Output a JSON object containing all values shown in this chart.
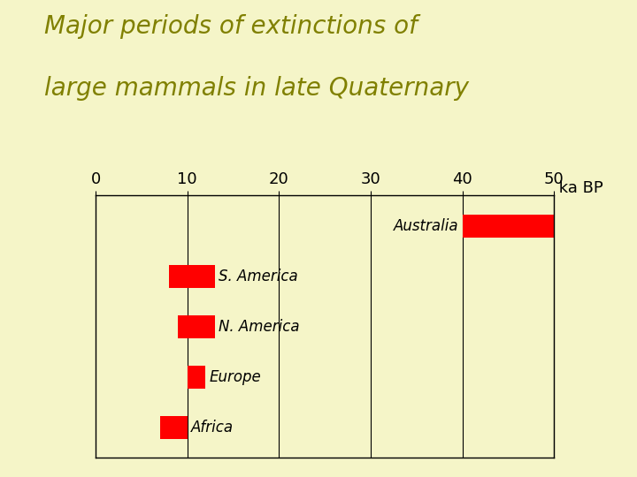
{
  "title_line1": "Major periods of extinctions of",
  "title_line2": "large mammals in late Quaternary",
  "title_color": "#808000",
  "background_color": "#f5f5c8",
  "bar_color": "#ff0000",
  "xlim": [
    0,
    50
  ],
  "xticks": [
    0,
    10,
    20,
    30,
    40,
    50
  ],
  "grid_x_positions": [
    10,
    20,
    30,
    40,
    50
  ],
  "regions": [
    "Australia",
    "S. America",
    "N. America",
    "Europe",
    "Africa"
  ],
  "bar_starts": [
    40,
    8,
    9,
    10,
    7
  ],
  "bar_ends": [
    50,
    13,
    13,
    12,
    10
  ],
  "label_side": [
    "left",
    "right",
    "right",
    "right",
    "right"
  ],
  "font_size_title": 20,
  "font_size_ticks": 13,
  "font_size_labels": 12
}
